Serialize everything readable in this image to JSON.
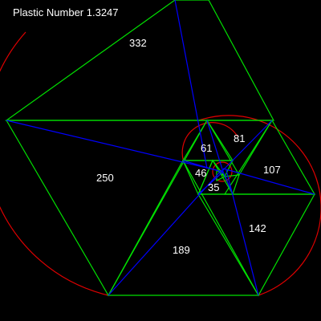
{
  "title": "Plastic Number 1.3247",
  "triangle_labels": [
    "332",
    "250",
    "189",
    "142",
    "107",
    "81",
    "61",
    "46",
    "35"
  ],
  "colors": {
    "background": "#000000",
    "triangles": "#00e000",
    "spiral_circles": "#e00000",
    "spiral_lines": "#0000ff",
    "text": "#ffffff"
  }
}
